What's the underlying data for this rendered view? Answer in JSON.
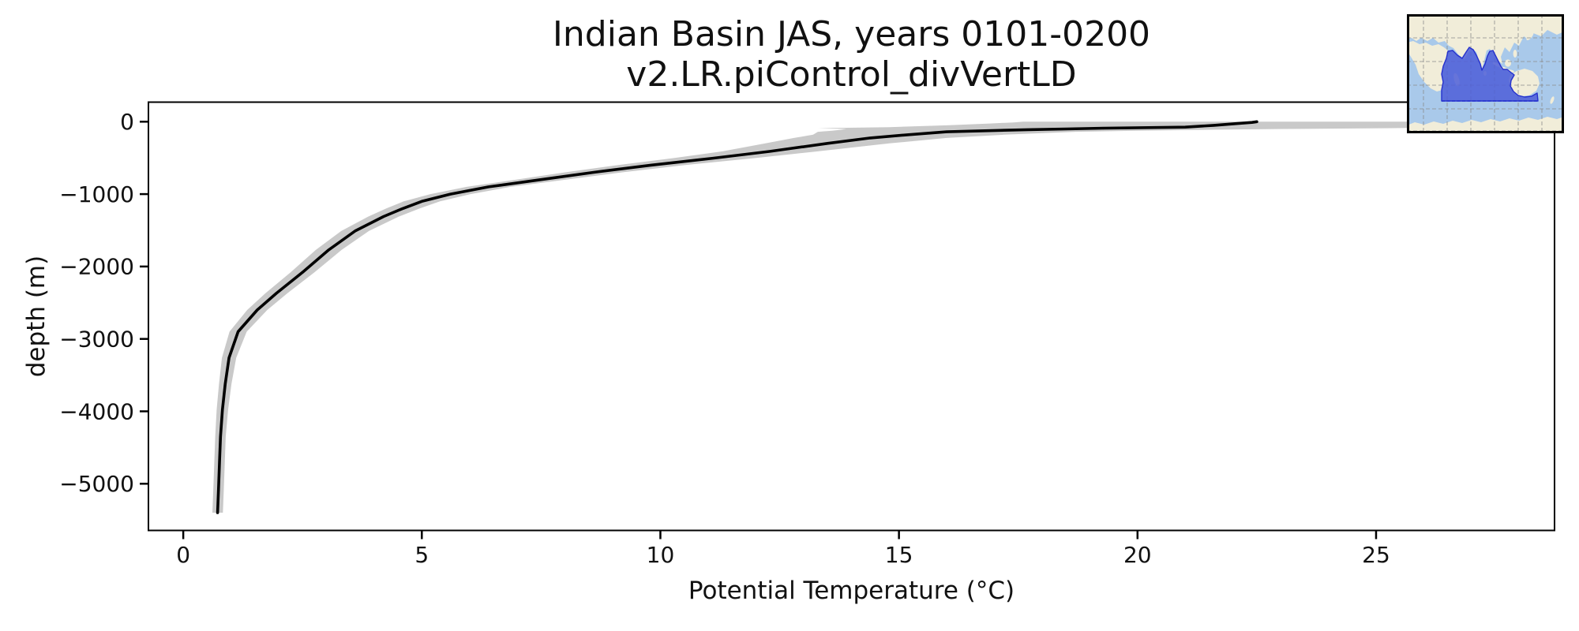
{
  "figure": {
    "title_line1": "Indian Basin JAS, years 0101-0200",
    "title_line2": "v2.LR.piControl_divVertLD",
    "xlabel": "Potential Temperature (°C)",
    "ylabel": "depth (m)"
  },
  "chart_data": {
    "type": "line",
    "title": "Indian Basin JAS, years 0101-0200\nv2.LR.piControl_divVertLD",
    "xlabel": "Potential Temperature (°C)",
    "ylabel": "depth (m)",
    "legend": "none",
    "grid": false,
    "xlim": [
      -0.73,
      28.74
    ],
    "ylim_depth": [
      270,
      -5645
    ],
    "x_ticks": [
      {
        "value": 0,
        "label": "0"
      },
      {
        "value": 5,
        "label": "5"
      },
      {
        "value": 10,
        "label": "10"
      },
      {
        "value": 15,
        "label": "15"
      },
      {
        "value": 20,
        "label": "20"
      },
      {
        "value": 25,
        "label": "25"
      }
    ],
    "y_ticks": [
      {
        "value": 0,
        "label": "0"
      },
      {
        "value": -1000,
        "label": "−1000"
      },
      {
        "value": -2000,
        "label": "−2000"
      },
      {
        "value": -3000,
        "label": "−3000"
      },
      {
        "value": -4000,
        "label": "−4000"
      },
      {
        "value": -5000,
        "label": "−5000"
      }
    ],
    "series": [
      {
        "name": "mean potential temperature profile with ± std band",
        "depth_m": [
          0,
          -10,
          -25,
          -50,
          -75,
          -90,
          -100,
          -110,
          -125,
          -140,
          -180,
          -225,
          -300,
          -410,
          -505,
          -600,
          -700,
          -800,
          -900,
          -1000,
          -1100,
          -1200,
          -1310,
          -1510,
          -1770,
          -2080,
          -2370,
          -2600,
          -2900,
          -3260,
          -3620,
          -3980,
          -4350,
          -4710,
          -5070,
          -5400
        ],
        "temp_c": [
          22.5,
          22.4,
          22.1,
          21.6,
          21.0,
          19.3,
          18.5,
          17.7,
          16.8,
          16.0,
          15.2,
          14.4,
          13.5,
          12.3,
          11.1,
          9.8,
          8.6,
          7.5,
          6.4,
          5.6,
          5.0,
          4.6,
          4.2,
          3.6,
          3.05,
          2.5,
          1.95,
          1.55,
          1.15,
          0.96,
          0.88,
          0.82,
          0.78,
          0.76,
          0.74,
          0.72
        ],
        "std_c": [
          4.9,
          5.0,
          5.2,
          5.6,
          6.2,
          6.0,
          4.6,
          3.9,
          3.2,
          2.7,
          2.0,
          1.6,
          1.3,
          1.0,
          0.85,
          0.7,
          0.6,
          0.52,
          0.46,
          0.42,
          0.38,
          0.35,
          0.32,
          0.29,
          0.27,
          0.25,
          0.23,
          0.21,
          0.18,
          0.15,
          0.13,
          0.12,
          0.11,
          0.11,
          0.11,
          0.11
        ]
      }
    ],
    "colors": {
      "line": "#000000",
      "band": "#c9c9c9",
      "spine": "#000000",
      "background": "#ffffff"
    },
    "inset_map": {
      "description": "world map inset, Indian Ocean basin highlighted",
      "ocean": "#a9c9ea",
      "land": "#f1edd9",
      "highlight_fill": "#4e5ed8",
      "highlight_edge": "#2531cd",
      "grid_color": "#8a8a8a",
      "border": "#000000"
    }
  }
}
